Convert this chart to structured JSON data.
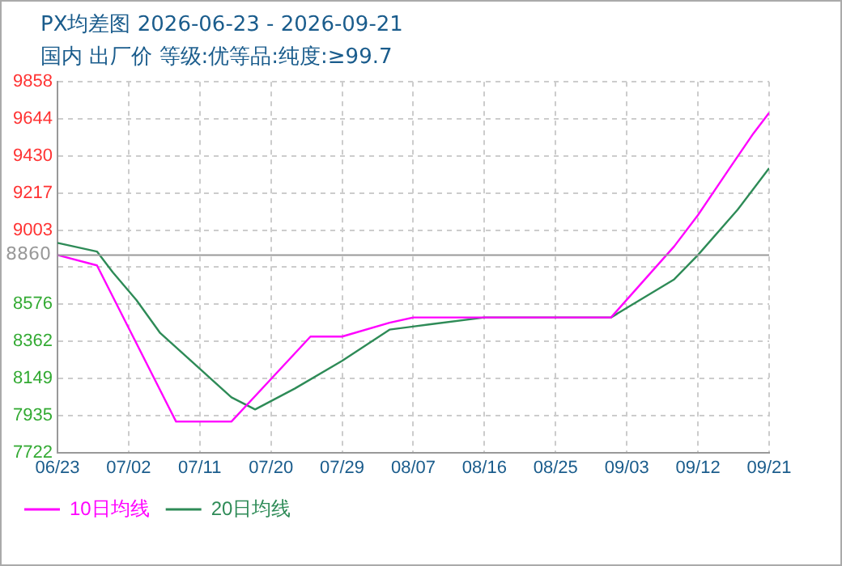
{
  "chart_data": {
    "type": "line",
    "title": "PX均差图 2026-06-23 - 2026-09-21",
    "subtitle": "国内 出厂价 等级:优等品:纯度:≥99.7",
    "xlim": [
      "2026-06-23",
      "2026-09-21"
    ],
    "xticks": [
      {
        "value": "2026-06-23",
        "label": "06/23"
      },
      {
        "value": "2026-07-02",
        "label": "07/02"
      },
      {
        "value": "2026-07-11",
        "label": "07/11"
      },
      {
        "value": "2026-07-20",
        "label": "07/20"
      },
      {
        "value": "2026-07-29",
        "label": "07/29"
      },
      {
        "value": "2026-08-07",
        "label": "08/07"
      },
      {
        "value": "2026-08-16",
        "label": "08/16"
      },
      {
        "value": "2026-08-25",
        "label": "08/25"
      },
      {
        "value": "2026-09-03",
        "label": "09/03"
      },
      {
        "value": "2026-09-12",
        "label": "09/12"
      },
      {
        "value": "2026-09-21",
        "label": "09/21"
      }
    ],
    "ylim": [
      7722,
      9858
    ],
    "yticks": [
      7722,
      7935,
      8149,
      8362,
      8576,
      {
        "value": 8790,
        "label": null
      },
      9003,
      9217,
      9430,
      9644,
      9858
    ],
    "ref_lines": [
      {
        "axis": "y",
        "value": 8860,
        "label": "8860",
        "color": "#999999"
      }
    ],
    "grid": true,
    "legend": "bottom",
    "marker": "none",
    "line_style": "solid",
    "series": [
      {
        "name": "10日均线",
        "color": "#ff00ff",
        "x": [
          "2026-06-23",
          "2026-06-28",
          "2026-07-02",
          "2026-07-08",
          "2026-07-15",
          "2026-07-25",
          "2026-07-29",
          "2026-08-04",
          "2026-08-07",
          "2026-08-16",
          "2026-09-01",
          "2026-09-09",
          "2026-09-12",
          "2026-09-16",
          "2026-09-19",
          "2026-09-21"
        ],
        "values": [
          8860,
          8800,
          8440,
          7900,
          7900,
          8390,
          8390,
          8470,
          8500,
          8500,
          8500,
          8910,
          9090,
          9360,
          9560,
          9680
        ]
      },
      {
        "name": "20日均线",
        "color": "#2e8b57",
        "x": [
          "2026-06-23",
          "2026-06-28",
          "2026-06-30",
          "2026-07-03",
          "2026-07-06",
          "2026-07-15",
          "2026-07-18",
          "2026-07-23",
          "2026-07-29",
          "2026-08-04",
          "2026-08-09",
          "2026-08-16",
          "2026-09-01",
          "2026-09-09",
          "2026-09-12",
          "2026-09-17",
          "2026-09-21"
        ],
        "values": [
          8930,
          8880,
          8760,
          8600,
          8410,
          8040,
          7970,
          8090,
          8250,
          8430,
          8460,
          8500,
          8500,
          8720,
          8860,
          9120,
          9360
        ]
      }
    ]
  }
}
